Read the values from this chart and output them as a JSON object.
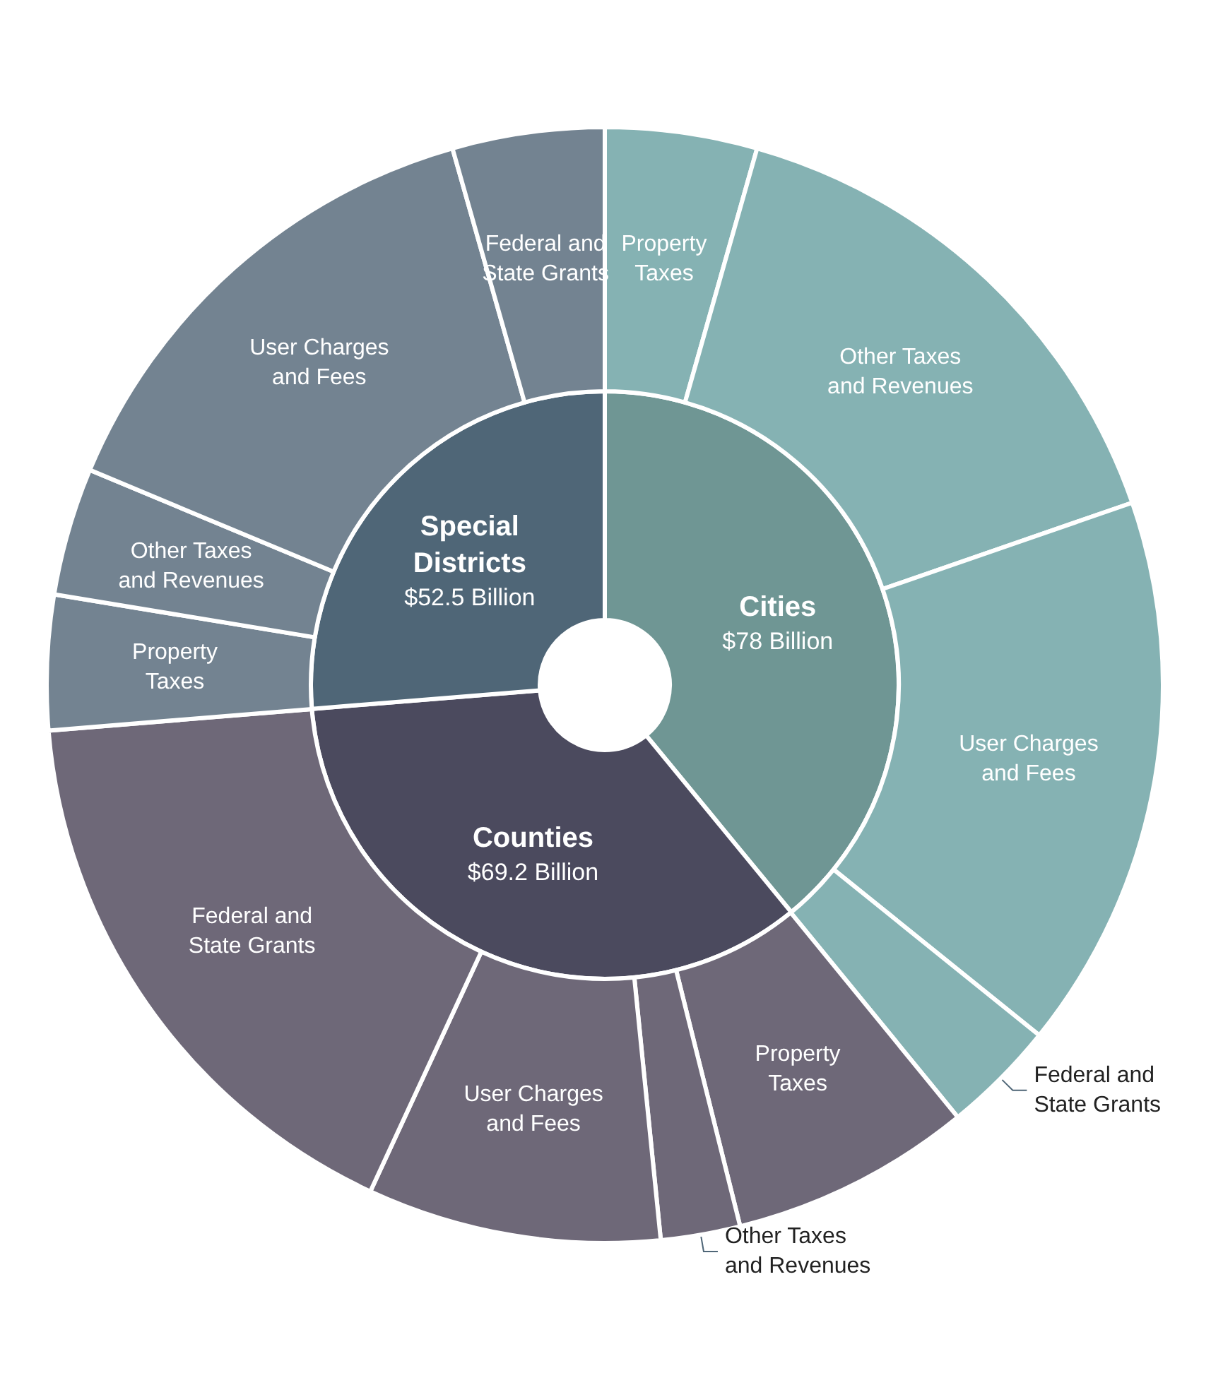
{
  "chart_data": [
    {
      "type": "donut",
      "categories": [
        "Cities",
        "Counties",
        "Special Districts"
      ],
      "values": [
        78,
        69.2,
        52.5
      ],
      "value_labels": [
        "$78 Billion",
        "$69.2 Billion",
        "$52.5 Billion"
      ],
      "colors": [
        "#6f9694",
        "#4b4a5e",
        "#4f6677"
      ]
    },
    {
      "type": "donut",
      "categories": [
        "Property Taxes",
        "Other Taxes and Revenues",
        "User Charges and Fees",
        "Federal and State Grants",
        "Property Taxes",
        "Other Taxes and Revenues",
        "User Charges and Fees",
        "Federal and State Grants",
        "Property Taxes",
        "Other Taxes and Revenues",
        "User Charges and Fees",
        "Federal and State Grants"
      ],
      "values": [
        4.4,
        15.3,
        16.1,
        3.3,
        7.0,
        2.3,
        8.5,
        16.8,
        3.9,
        3.7,
        14.3,
        4.4
      ],
      "colors": [
        "#85b2b3",
        "#85b2b3",
        "#85b2b3",
        "#85b2b3",
        "#6e6878",
        "#6e6878",
        "#6e6878",
        "#6e6878",
        "#738391",
        "#738391",
        "#738391",
        "#738391"
      ]
    }
  ]
}
